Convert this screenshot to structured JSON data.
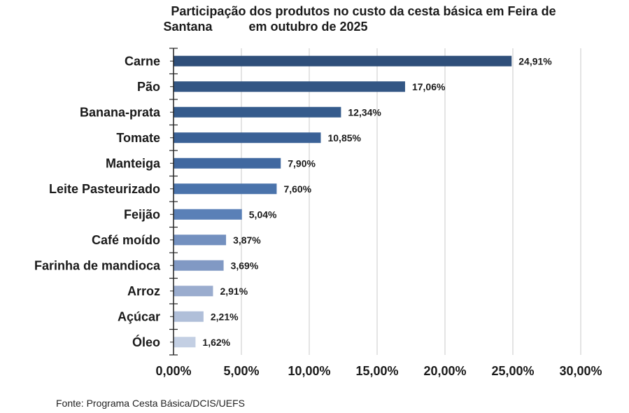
{
  "chart_data": {
    "type": "bar",
    "orientation": "horizontal",
    "title_line1": "Participação dos produtos no custo da cesta básica em Feira de",
    "title_line2a": "Santana",
    "title_line2b": "em outubro de 2025",
    "categories": [
      "Carne",
      "Pão",
      "Banana-prata",
      "Tomate",
      "Manteiga",
      "Leite Pasteurizado",
      "Feijão",
      "Café moído",
      "Farinha de mandioca",
      "Arroz",
      "Açúcar",
      "Óleo"
    ],
    "values": [
      24.91,
      17.06,
      12.34,
      10.85,
      7.9,
      7.6,
      5.04,
      3.87,
      3.69,
      2.91,
      2.21,
      1.62
    ],
    "value_labels": [
      "24,91%",
      "17,06%",
      "12,34%",
      "10,85%",
      "7,90%",
      "7,60%",
      "5,04%",
      "3,87%",
      "3,69%",
      "2,91%",
      "2,21%",
      "1,62%"
    ],
    "bar_colors": [
      "#2f4f7a",
      "#335684",
      "#355b8c",
      "#3a6196",
      "#4068a0",
      "#4a73ab",
      "#5a80b7",
      "#7390bf",
      "#8199c4",
      "#9aacce",
      "#b0bfd9",
      "#c3cfe3"
    ],
    "xlim": [
      0,
      30
    ],
    "xticks": [
      0,
      5,
      10,
      15,
      20,
      25,
      30
    ],
    "xtick_labels": [
      "0,00%",
      "5,00%",
      "10,00%",
      "15,00%",
      "20,00%",
      "25,00%",
      "30,00%"
    ],
    "xlabel": "",
    "ylabel": "",
    "grid": true,
    "legend": "none",
    "source": "Fonte: Programa Cesta Básica/DCIS/UEFS"
  }
}
